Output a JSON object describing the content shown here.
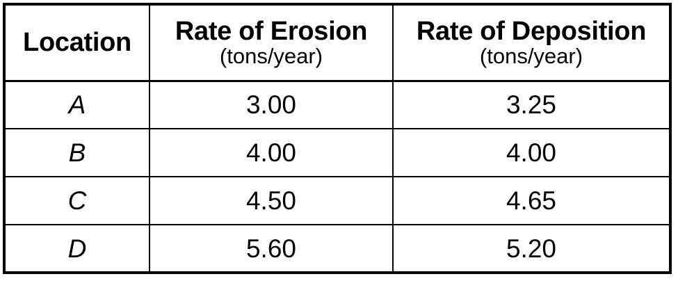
{
  "table": {
    "headers": [
      {
        "label": "Location",
        "unit": ""
      },
      {
        "label": "Rate of Erosion",
        "unit": "(tons/year)"
      },
      {
        "label": "Rate of Deposition",
        "unit": "(tons/year)"
      }
    ],
    "rows": [
      {
        "location": "A",
        "erosion": "3.00",
        "deposition": "3.25"
      },
      {
        "location": "B",
        "erosion": "4.00",
        "deposition": "4.00"
      },
      {
        "location": "C",
        "erosion": "4.50",
        "deposition": "4.65"
      },
      {
        "location": "D",
        "erosion": "5.60",
        "deposition": "5.20"
      }
    ]
  }
}
